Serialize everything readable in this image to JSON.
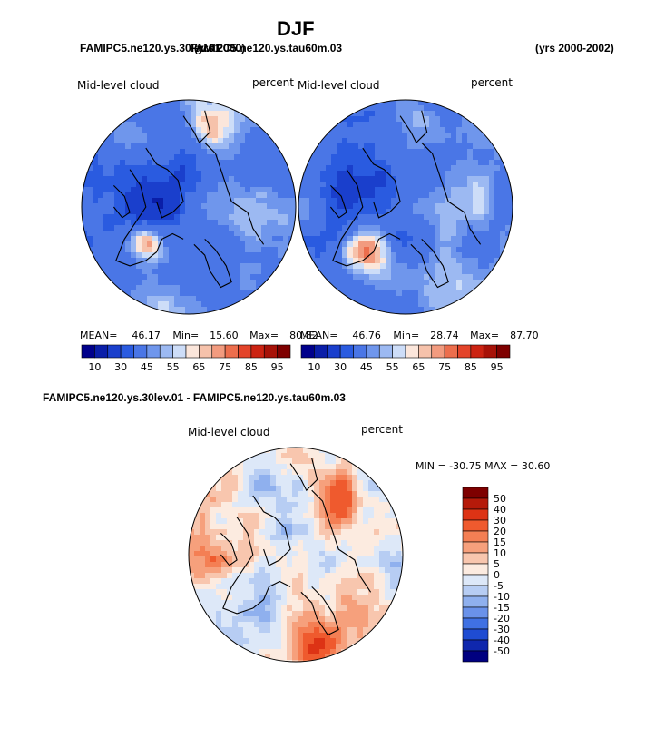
{
  "page": {
    "title": "DJF",
    "case1_label": "FAMIPC5.ne120.ys.30lev.01",
    "case2_label": "FAMIPC5.ne120.ys.tau60m.03",
    "overlap_label": "FAMIPC5.ne120.ys.tau60m.03",
    "years_case1": "(yrs 2000)",
    "years_right": "(yrs 2000-2002)",
    "diff_title": "FAMIPC5.ne120.ys.30lev.01 - FAMIPC5.ne120.ys.tau60m.03"
  },
  "chart_data": [
    {
      "type": "heatmap",
      "projection": "polar-stereographic",
      "variable": "Mid-level cloud",
      "units": "percent",
      "stats": {
        "mean_label": "MEAN=",
        "mean": "46.17",
        "min_label": "Min=",
        "min": "15.60",
        "max_label": "Max=",
        "max": "80.82"
      },
      "color_levels": [
        10,
        20,
        30,
        35,
        45,
        50,
        55,
        60,
        65,
        70,
        75,
        80,
        85,
        90,
        95
      ],
      "tick_labels": [
        "10",
        "30",
        "45",
        "55",
        "65",
        "75",
        "85",
        "95"
      ],
      "colors": [
        "#00008b",
        "#0a1ea8",
        "#1a3fcc",
        "#2a5be0",
        "#4a76e6",
        "#6f96ec",
        "#9cb9f2",
        "#cdddf8",
        "#fbe6db",
        "#f6c2ab",
        "#f29b7f",
        "#ec6e4d",
        "#e3442a",
        "#cc2312",
        "#a71208",
        "#7e0000"
      ]
    },
    {
      "type": "heatmap",
      "projection": "polar-stereographic",
      "variable": "Mid-level cloud",
      "units": "percent",
      "stats": {
        "mean_label": "MEAN=",
        "mean": "46.76",
        "min_label": "Min=",
        "min": "28.74",
        "max_label": "Max=",
        "max": "87.70"
      },
      "color_levels": [
        10,
        20,
        30,
        35,
        45,
        50,
        55,
        60,
        65,
        70,
        75,
        80,
        85,
        90,
        95
      ],
      "tick_labels": [
        "10",
        "30",
        "45",
        "55",
        "65",
        "75",
        "85",
        "95"
      ],
      "colors": [
        "#00008b",
        "#0a1ea8",
        "#1a3fcc",
        "#2a5be0",
        "#4a76e6",
        "#6f96ec",
        "#9cb9f2",
        "#cdddf8",
        "#fbe6db",
        "#f6c2ab",
        "#f29b7f",
        "#ec6e4d",
        "#e3442a",
        "#cc2312",
        "#a71208",
        "#7e0000"
      ]
    },
    {
      "type": "heatmap",
      "projection": "polar-stereographic",
      "variable": "Mid-level cloud",
      "units": "percent",
      "stats_text": "MIN = -30.75 MAX =  30.60",
      "min": -30.75,
      "max": 30.6,
      "color_levels": [
        50,
        40,
        30,
        20,
        15,
        10,
        5,
        0,
        -5,
        -10,
        -15,
        -20,
        -30,
        -40,
        -50
      ],
      "tick_labels": [
        "50",
        "40",
        "30",
        "20",
        "15",
        "10",
        "5",
        "0",
        "-5",
        "-10",
        "-15",
        "-20",
        "-30",
        "-40",
        "-50"
      ],
      "colors": [
        "#7e0000",
        "#b51a0a",
        "#dd3315",
        "#ef5a2e",
        "#f47f54",
        "#f6a07c",
        "#f8c6ae",
        "#fcebe0",
        "#dde8f8",
        "#b7cdf3",
        "#8fb0ee",
        "#6a92ea",
        "#4071e3",
        "#1f4cd2",
        "#0f27ad",
        "#000080"
      ]
    }
  ]
}
